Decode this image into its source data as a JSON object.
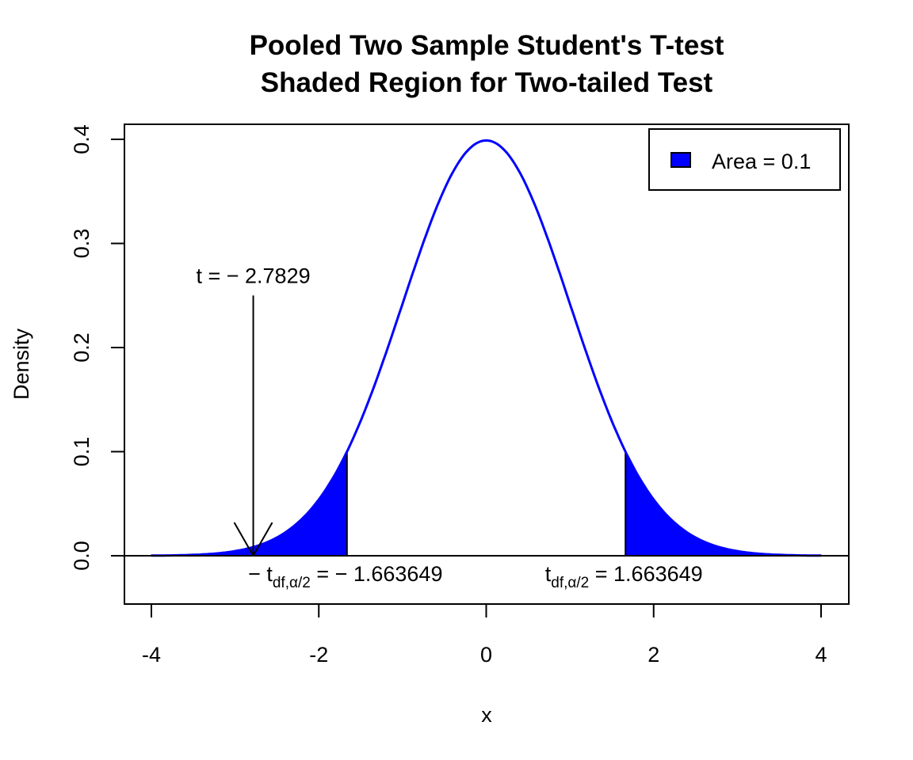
{
  "chart_data": {
    "type": "area",
    "title": "Pooled Two Sample Student's T-test",
    "subtitle": "Shaded Region for Two-tailed Test",
    "xlabel": "x",
    "ylabel": "Density",
    "xlim": [
      -4,
      4
    ],
    "ylim": [
      -0.046,
      0.41
    ],
    "x_ticks": [
      "-4",
      "-2",
      "0",
      "2",
      "4"
    ],
    "y_ticks": [
      "0.0",
      "0.1",
      "0.2",
      "0.3",
      "0.4"
    ],
    "grid": false,
    "curve": {
      "distribution": "t density",
      "color": "#0000ff",
      "x_range": [
        -4,
        4
      ]
    },
    "shaded_regions": [
      {
        "from": -4,
        "to": -1.663649,
        "color": "#0000ff"
      },
      {
        "from": 1.663649,
        "to": 4,
        "color": "#0000ff"
      }
    ],
    "legend": {
      "label": "Area = 0.1",
      "color": "#0000ff",
      "position": "top-right"
    },
    "test_statistic": {
      "value": -2.7829,
      "label_text": "t = − 2.7829"
    },
    "critical_values": {
      "lower": {
        "value": -1.663649,
        "main": "− t",
        "sub": "df,α/2",
        "rhs": " = − 1.663649"
      },
      "upper": {
        "value": 1.663649,
        "main": "t",
        "sub": "df,α/2",
        "rhs": " = 1.663649"
      }
    }
  }
}
